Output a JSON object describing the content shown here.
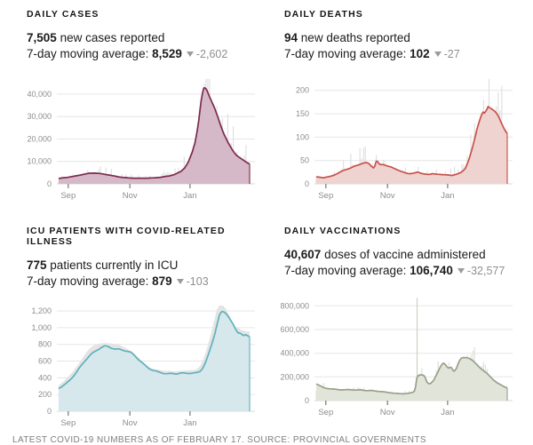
{
  "footer": "LATEST COVID-19 NUMBERS AS OF FEBRUARY 17. SOURCE: PROVINCIAL GOVERNMENTS",
  "panels": [
    {
      "title": "DAILY CASES",
      "stat_value": "7,505",
      "stat_desc": "new cases reported",
      "avg_prefix": "7-day moving average:",
      "avg_value": "8,529",
      "trend_icon": "triangle-down",
      "change": "-2,602"
    },
    {
      "title": "DAILY DEATHS",
      "stat_value": "94",
      "stat_desc": "new deaths reported",
      "avg_prefix": "7-day moving average:",
      "avg_value": "102",
      "trend_icon": "triangle-down",
      "change": "-27"
    },
    {
      "title": "ICU PATIENTS WITH COVID-RELATED ILLNESS",
      "stat_value": "775",
      "stat_desc": "patients currently in ICU",
      "avg_prefix": "7-day moving average:",
      "avg_value": "879",
      "trend_icon": "triangle-down",
      "change": "-103"
    },
    {
      "title": "DAILY VACCINATIONS",
      "stat_value": "40,607",
      "stat_desc": "doses of vaccine administered",
      "avg_prefix": "7-day moving average:",
      "avg_value": "106,740",
      "trend_icon": "triangle-down",
      "change": "-32,577"
    }
  ],
  "chart_data": [
    {
      "type": "area",
      "title": "Daily cases, 7-day moving average with daily bars",
      "series_label": "7-day moving average",
      "line_color": "#7d2a4b",
      "fill_color": "#d6b9c8",
      "shadow": "bars",
      "shadow_color": "#dedede",
      "noise": [
        0.4,
        1.45
      ],
      "ymax": 47500,
      "yticks": [
        {
          "v": 0,
          "label": "0"
        },
        {
          "v": 10000,
          "label": "10,000"
        },
        {
          "v": 20000,
          "label": "20,000"
        },
        {
          "v": 30000,
          "label": "30,000"
        },
        {
          "v": 40000,
          "label": "40,000"
        }
      ],
      "xticks": [
        {
          "t": 0.05,
          "label": "Sep"
        },
        {
          "t": 0.373,
          "label": "Nov"
        },
        {
          "t": 0.688,
          "label": "Jan"
        }
      ],
      "points": [
        [
          0,
          2400
        ],
        [
          0.04,
          2800
        ],
        [
          0.08,
          3400
        ],
        [
          0.12,
          4100
        ],
        [
          0.16,
          4650
        ],
        [
          0.19,
          4800
        ],
        [
          0.22,
          4600
        ],
        [
          0.25,
          4200
        ],
        [
          0.28,
          3650
        ],
        [
          0.31,
          3150
        ],
        [
          0.34,
          2850
        ],
        [
          0.38,
          2600
        ],
        [
          0.42,
          2500
        ],
        [
          0.46,
          2520
        ],
        [
          0.5,
          2700
        ],
        [
          0.54,
          3000
        ],
        [
          0.58,
          3500
        ],
        [
          0.61,
          4300
        ],
        [
          0.64,
          5600
        ],
        [
          0.66,
          7200
        ],
        [
          0.68,
          9800
        ],
        [
          0.7,
          14000
        ],
        [
          0.715,
          18500
        ],
        [
          0.73,
          26000
        ],
        [
          0.74,
          33000
        ],
        [
          0.75,
          39500
        ],
        [
          0.76,
          42800
        ],
        [
          0.77,
          43000
        ],
        [
          0.78,
          41500
        ],
        [
          0.79,
          39500
        ],
        [
          0.81,
          35000
        ],
        [
          0.83,
          30000
        ],
        [
          0.85,
          25500
        ],
        [
          0.87,
          21500
        ],
        [
          0.89,
          18000
        ],
        [
          0.91,
          15200
        ],
        [
          0.93,
          13000
        ],
        [
          0.95,
          11400
        ],
        [
          0.97,
          10200
        ],
        [
          0.985,
          9500
        ],
        [
          1,
          8900
        ]
      ],
      "spikes": []
    },
    {
      "type": "area",
      "title": "Daily deaths, 7-day moving average with daily bars",
      "series_label": "7-day moving average",
      "line_color": "#c9514b",
      "fill_color": "#eed3d0",
      "shadow": "bars",
      "shadow_color": "#dedede",
      "noise": [
        0.35,
        1.55
      ],
      "ymax": 228,
      "yticks": [
        {
          "v": 0,
          "label": "0"
        },
        {
          "v": 50,
          "label": "50"
        },
        {
          "v": 100,
          "label": "100"
        },
        {
          "v": 150,
          "label": "150"
        },
        {
          "v": 200,
          "label": "200"
        }
      ],
      "xticks": [
        {
          "t": 0.05,
          "label": "Sep"
        },
        {
          "t": 0.373,
          "label": "Nov"
        },
        {
          "t": 0.688,
          "label": "Jan"
        }
      ],
      "points": [
        [
          0,
          15
        ],
        [
          0.02,
          14
        ],
        [
          0.04,
          13
        ],
        [
          0.06,
          15
        ],
        [
          0.08,
          17
        ],
        [
          0.1,
          20
        ],
        [
          0.12,
          24
        ],
        [
          0.14,
          28
        ],
        [
          0.16,
          31
        ],
        [
          0.18,
          34
        ],
        [
          0.2,
          38
        ],
        [
          0.22,
          41
        ],
        [
          0.24,
          44
        ],
        [
          0.26,
          45
        ],
        [
          0.275,
          43
        ],
        [
          0.29,
          37
        ],
        [
          0.3,
          34
        ],
        [
          0.31,
          40
        ],
        [
          0.315,
          52
        ],
        [
          0.325,
          45
        ],
        [
          0.335,
          41
        ],
        [
          0.35,
          42
        ],
        [
          0.37,
          39
        ],
        [
          0.39,
          36
        ],
        [
          0.41,
          32
        ],
        [
          0.43,
          29
        ],
        [
          0.45,
          26
        ],
        [
          0.47,
          23
        ],
        [
          0.49,
          22
        ],
        [
          0.51,
          23
        ],
        [
          0.53,
          25
        ],
        [
          0.55,
          22
        ],
        [
          0.57,
          21
        ],
        [
          0.59,
          20
        ],
        [
          0.61,
          22
        ],
        [
          0.63,
          21
        ],
        [
          0.65,
          20
        ],
        [
          0.67,
          19
        ],
        [
          0.69,
          19
        ],
        [
          0.71,
          18
        ],
        [
          0.73,
          20
        ],
        [
          0.75,
          23
        ],
        [
          0.765,
          27
        ],
        [
          0.78,
          33
        ],
        [
          0.79,
          42
        ],
        [
          0.8,
          52
        ],
        [
          0.81,
          65
        ],
        [
          0.82,
          80
        ],
        [
          0.83,
          97
        ],
        [
          0.84,
          115
        ],
        [
          0.85,
          130
        ],
        [
          0.86,
          142
        ],
        [
          0.87,
          152
        ],
        [
          0.875,
          155
        ],
        [
          0.88,
          152
        ],
        [
          0.89,
          158
        ],
        [
          0.9,
          168
        ],
        [
          0.905,
          166
        ],
        [
          0.92,
          160
        ],
        [
          0.94,
          150
        ],
        [
          0.95,
          145
        ],
        [
          0.96,
          138
        ],
        [
          0.97,
          130
        ],
        [
          0.98,
          122
        ],
        [
          0.99,
          114
        ],
        [
          1,
          108
        ]
      ],
      "spikes": []
    },
    {
      "type": "area",
      "title": "ICU patients, 7-day moving average with daily silhouette",
      "series_label": "7-day moving average",
      "line_color": "#5fb1bd",
      "fill_color": "#d7e8ec",
      "shadow": "area",
      "shadow_color": "#e4e4e4",
      "noise": [
        0,
        0
      ],
      "ymax": 1275,
      "yticks": [
        {
          "v": 0,
          "label": "0"
        },
        {
          "v": 200,
          "label": "200"
        },
        {
          "v": 400,
          "label": "400"
        },
        {
          "v": 600,
          "label": "600"
        },
        {
          "v": 800,
          "label": "800"
        },
        {
          "v": 1000,
          "label": "1,000"
        },
        {
          "v": 1200,
          "label": "1,200"
        }
      ],
      "xticks": [
        {
          "t": 0.05,
          "label": "Sep"
        },
        {
          "t": 0.373,
          "label": "Nov"
        },
        {
          "t": 0.688,
          "label": "Jan"
        }
      ],
      "points": [
        [
          0,
          270
        ],
        [
          0.02,
          300
        ],
        [
          0.04,
          335
        ],
        [
          0.06,
          380
        ],
        [
          0.08,
          430
        ],
        [
          0.1,
          485
        ],
        [
          0.12,
          545
        ],
        [
          0.14,
          605
        ],
        [
          0.16,
          660
        ],
        [
          0.18,
          705
        ],
        [
          0.2,
          740
        ],
        [
          0.22,
          762
        ],
        [
          0.24,
          770
        ],
        [
          0.26,
          763
        ],
        [
          0.28,
          752
        ],
        [
          0.3,
          744
        ],
        [
          0.32,
          748
        ],
        [
          0.34,
          738
        ],
        [
          0.36,
          718
        ],
        [
          0.38,
          690
        ],
        [
          0.4,
          655
        ],
        [
          0.42,
          615
        ],
        [
          0.44,
          577
        ],
        [
          0.46,
          540
        ],
        [
          0.48,
          508
        ],
        [
          0.5,
          482
        ],
        [
          0.52,
          466
        ],
        [
          0.54,
          456
        ],
        [
          0.56,
          450
        ],
        [
          0.58,
          453
        ],
        [
          0.6,
          457
        ],
        [
          0.62,
          450
        ],
        [
          0.64,
          453
        ],
        [
          0.66,
          448
        ],
        [
          0.68,
          452
        ],
        [
          0.7,
          458
        ],
        [
          0.72,
          464
        ],
        [
          0.74,
          482
        ],
        [
          0.755,
          520
        ],
        [
          0.77,
          585
        ],
        [
          0.785,
          670
        ],
        [
          0.8,
          780
        ],
        [
          0.81,
          860
        ],
        [
          0.82,
          950
        ],
        [
          0.83,
          1050
        ],
        [
          0.84,
          1140
        ],
        [
          0.85,
          1190
        ],
        [
          0.86,
          1200
        ],
        [
          0.87,
          1195
        ],
        [
          0.88,
          1175
        ],
        [
          0.89,
          1140
        ],
        [
          0.9,
          1090
        ],
        [
          0.91,
          1040
        ],
        [
          0.92,
          990
        ],
        [
          0.93,
          950
        ],
        [
          0.94,
          930
        ],
        [
          0.95,
          940
        ],
        [
          0.96,
          925
        ],
        [
          0.97,
          910
        ],
        [
          0.98,
          918
        ],
        [
          0.99,
          905
        ],
        [
          1,
          898
        ]
      ],
      "spikes": []
    },
    {
      "type": "area",
      "title": "Daily vaccinations, 7-day moving average with daily bars",
      "series_label": "7-day moving average",
      "line_color": "#9aa089",
      "fill_color": "#e1e4d9",
      "shadow": "bars",
      "shadow_color": "#dcded6",
      "spike_color": "#cdd0c5",
      "noise": [
        0.5,
        0.9
      ],
      "ymax": 900000,
      "yticks": [
        {
          "v": 0,
          "label": "0"
        },
        {
          "v": 200000,
          "label": "200,000"
        },
        {
          "v": 400000,
          "label": "400,000"
        },
        {
          "v": 600000,
          "label": "600,000"
        },
        {
          "v": 800000,
          "label": "800,000"
        }
      ],
      "xticks": [
        {
          "t": 0.05,
          "label": "Sep"
        },
        {
          "t": 0.373,
          "label": "Nov"
        },
        {
          "t": 0.688,
          "label": "Jan"
        }
      ],
      "points": [
        [
          0,
          140000
        ],
        [
          0.015,
          130000
        ],
        [
          0.03,
          118000
        ],
        [
          0.05,
          106000
        ],
        [
          0.07,
          99000
        ],
        [
          0.09,
          96000
        ],
        [
          0.11,
          93000
        ],
        [
          0.13,
          90000
        ],
        [
          0.15,
          92000
        ],
        [
          0.17,
          95000
        ],
        [
          0.19,
          91000
        ],
        [
          0.21,
          88000
        ],
        [
          0.23,
          90000
        ],
        [
          0.25,
          86000
        ],
        [
          0.27,
          84000
        ],
        [
          0.29,
          87000
        ],
        [
          0.31,
          81000
        ],
        [
          0.33,
          78000
        ],
        [
          0.35,
          74000
        ],
        [
          0.37,
          69000
        ],
        [
          0.39,
          65000
        ],
        [
          0.41,
          62000
        ],
        [
          0.43,
          60000
        ],
        [
          0.45,
          58000
        ],
        [
          0.47,
          59000
        ],
        [
          0.49,
          63000
        ],
        [
          0.505,
          68000
        ],
        [
          0.515,
          80000
        ],
        [
          0.522,
          130000
        ],
        [
          0.527,
          195000
        ],
        [
          0.532,
          212000
        ],
        [
          0.55,
          218000
        ],
        [
          0.565,
          212000
        ],
        [
          0.572,
          190000
        ],
        [
          0.58,
          158000
        ],
        [
          0.59,
          142000
        ],
        [
          0.6,
          148000
        ],
        [
          0.615,
          170000
        ],
        [
          0.63,
          215000
        ],
        [
          0.645,
          265000
        ],
        [
          0.655,
          300000
        ],
        [
          0.665,
          320000
        ],
        [
          0.675,
          308000
        ],
        [
          0.685,
          285000
        ],
        [
          0.695,
          272000
        ],
        [
          0.705,
          288000
        ],
        [
          0.712,
          268000
        ],
        [
          0.72,
          252000
        ],
        [
          0.73,
          262000
        ],
        [
          0.74,
          300000
        ],
        [
          0.75,
          335000
        ],
        [
          0.76,
          352000
        ],
        [
          0.775,
          358000
        ],
        [
          0.79,
          362000
        ],
        [
          0.8,
          358000
        ],
        [
          0.815,
          345000
        ],
        [
          0.83,
          322000
        ],
        [
          0.85,
          292000
        ],
        [
          0.87,
          262000
        ],
        [
          0.89,
          232000
        ],
        [
          0.91,
          200000
        ],
        [
          0.93,
          172000
        ],
        [
          0.95,
          148000
        ],
        [
          0.97,
          130000
        ],
        [
          0.985,
          118000
        ],
        [
          1,
          108000
        ]
      ],
      "spikes": [
        [
          0.528,
          868000
        ]
      ]
    }
  ]
}
